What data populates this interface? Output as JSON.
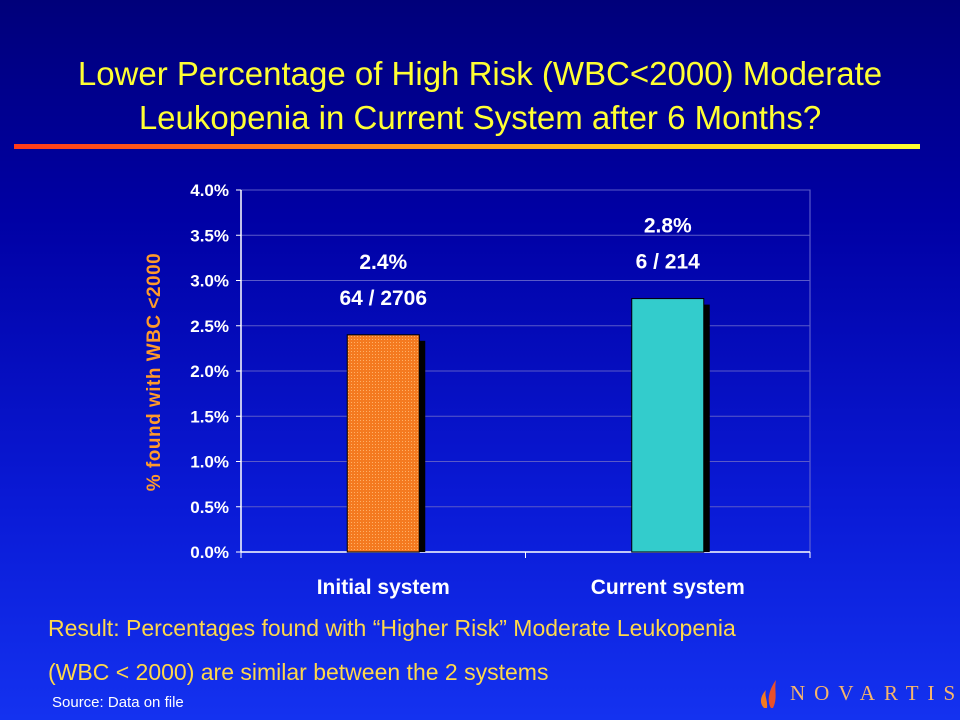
{
  "title_line1": "Lower Percentage of High Risk (WBC<2000) Moderate",
  "title_line2": "Leukopenia in Current System after 6 Months?",
  "chart_data": {
    "type": "bar",
    "categories": [
      "Initial system",
      "Current system"
    ],
    "values": [
      2.4,
      2.8
    ],
    "value_labels": [
      "2.4%",
      "2.8%"
    ],
    "count_labels": [
      "64 / 2706",
      "6 / 214"
    ],
    "ylabel": "% found with WBC <2000",
    "ylim": [
      0,
      4.0
    ],
    "yticks": [
      0,
      0.5,
      1.0,
      1.5,
      2.0,
      2.5,
      3.0,
      3.5,
      4.0
    ],
    "ytick_labels": [
      "0.0%",
      "0.5%",
      "1.0%",
      "1.5%",
      "2.0%",
      "2.5%",
      "3.0%",
      "3.5%",
      "4.0%"
    ],
    "grid": true,
    "colors": [
      "#f47a20",
      "#33cccc"
    ]
  },
  "result_line1": "Result: Percentages found with “Higher Risk” Moderate Leukopenia",
  "result_line2": "(WBC < 2000) are similar between the 2 systems",
  "source": "Source:  Data on file",
  "logo_text": "NOVARTIS",
  "colors": {
    "title": "#ffff33",
    "result": "#ffd84a",
    "axis_label": "#ff9a2a",
    "logo": "#f7b56a"
  }
}
